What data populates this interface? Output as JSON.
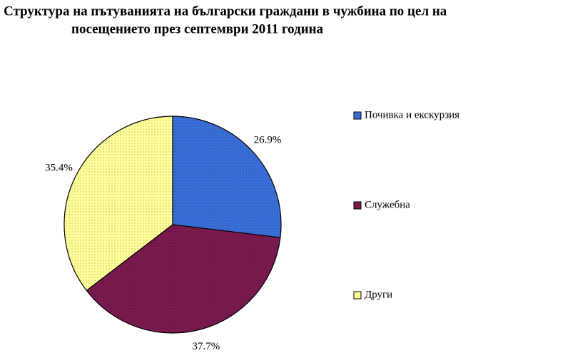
{
  "chart_data": {
    "type": "pie",
    "title": [
      "Структура на пътуванията на български граждани в чужбина по цел на",
      "посещението през септември 2011 година"
    ],
    "categories": [
      "Почивка и екскурзия",
      "Служебна",
      "Други"
    ],
    "values": [
      26.9,
      37.7,
      35.4
    ],
    "value_labels": [
      "26.9%",
      "37.7%",
      "35.4%"
    ],
    "colors": [
      "#3a6fd8",
      "#7a1a4f",
      "#ffff99"
    ],
    "legend": "right"
  }
}
